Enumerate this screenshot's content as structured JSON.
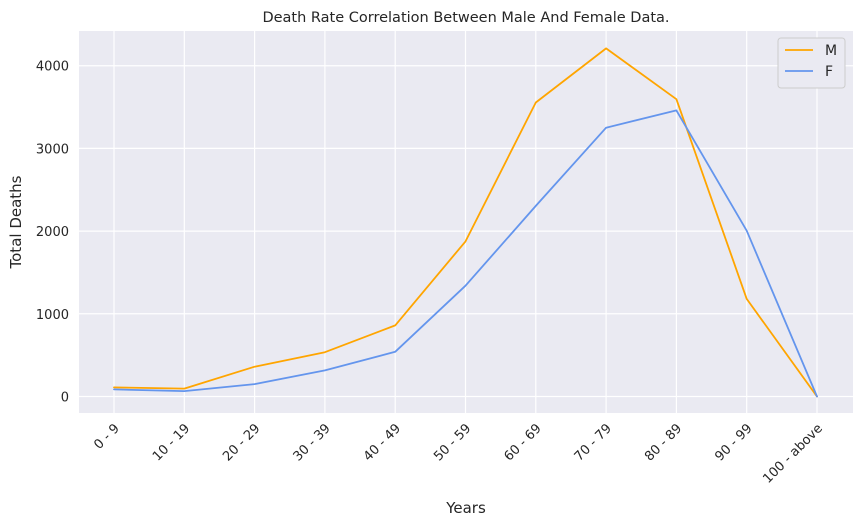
{
  "chart_data": {
    "type": "line",
    "title": "Death Rate Correlation Between Male And Female Data.",
    "xlabel": "Years",
    "ylabel": "Total Deaths",
    "categories": [
      "0 - 9",
      "10 - 19",
      "20 - 29",
      "30 - 39",
      "40 - 49",
      "50 - 59",
      "60 - 69",
      "70 - 79",
      "80 - 89",
      "90 - 99",
      "100 - above"
    ],
    "series": [
      {
        "name": "M",
        "color": "#FFA500",
        "values": [
          110,
          95,
          360,
          535,
          860,
          1875,
          3555,
          4210,
          3595,
          1180,
          0
        ]
      },
      {
        "name": "F",
        "color": "#6495ED",
        "values": [
          85,
          65,
          150,
          315,
          540,
          1340,
          2305,
          3250,
          3460,
          2005,
          0
        ]
      }
    ],
    "ylim": [
      -200,
      4420
    ],
    "yticks": [
      0,
      1000,
      2000,
      3000,
      4000
    ],
    "grid": true,
    "legend_position": "top-right"
  }
}
